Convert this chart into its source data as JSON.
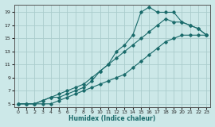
{
  "xlabel": "Humidex (Indice chaleur)",
  "bg_color": "#cce8e8",
  "grid_color": "#aacccc",
  "line_color": "#1a6b6b",
  "xlim": [
    -0.5,
    23.5
  ],
  "ylim": [
    4.5,
    20.2
  ],
  "xticks": [
    0,
    1,
    2,
    3,
    4,
    5,
    6,
    7,
    8,
    9,
    10,
    11,
    12,
    13,
    14,
    15,
    16,
    17,
    18,
    19,
    20,
    21,
    22,
    23
  ],
  "yticks": [
    5,
    7,
    9,
    11,
    13,
    15,
    17,
    19
  ],
  "line1_x": [
    0,
    1,
    2,
    3,
    4,
    5,
    6,
    7,
    8,
    9,
    10,
    11,
    12,
    13,
    14,
    15,
    16,
    17,
    18,
    19,
    20,
    21,
    22,
    23
  ],
  "line1_y": [
    5,
    5,
    5,
    5.5,
    6,
    6,
    6.5,
    7,
    7.5,
    8.5,
    10,
    11,
    13,
    14,
    15.5,
    19,
    19.8,
    19,
    19,
    19,
    17.5,
    17,
    16.5,
    15.5
  ],
  "line2_x": [
    0,
    1,
    2,
    3,
    4,
    5,
    6,
    7,
    8,
    9,
    10,
    11,
    12,
    13,
    14,
    15,
    16,
    17,
    18,
    19,
    20,
    21,
    22,
    23
  ],
  "line2_y": [
    5,
    5,
    5,
    5.5,
    6,
    6.5,
    7,
    7.5,
    8,
    9,
    10,
    11,
    12,
    13,
    14,
    15,
    16,
    17,
    18,
    17.5,
    17.5,
    17,
    16.5,
    15.5
  ],
  "line3_x": [
    0,
    1,
    2,
    3,
    4,
    5,
    6,
    7,
    8,
    9,
    10,
    11,
    12,
    13,
    14,
    15,
    16,
    17,
    18,
    19,
    20,
    21,
    22,
    23
  ],
  "line3_y": [
    5,
    5,
    5,
    5,
    5,
    5.5,
    6,
    6.5,
    7,
    7.5,
    8,
    8.5,
    9,
    9.5,
    10.5,
    11.5,
    12.5,
    13.5,
    14.5,
    15,
    15.5,
    15.5,
    15.5,
    15.5
  ]
}
